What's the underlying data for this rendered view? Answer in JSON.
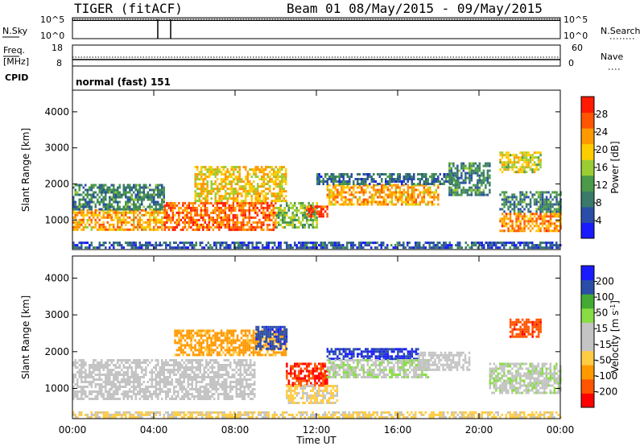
{
  "header": {
    "station": "TIGER (fitACF)",
    "beam_title": "Beam 01 08/May/2015 - 09/May/2015"
  },
  "top_panels": {
    "nsky_label": "N.Sky",
    "nsky_ticks": [
      "10^5",
      "10^0"
    ],
    "nsearch_label": "N.Search",
    "nsearch_ticks": [
      "10^5",
      "10^0"
    ],
    "freq_label_1": "Freq.",
    "freq_label_2": "[MHz]",
    "freq_ticks": [
      "18",
      "8"
    ],
    "nave_label": "Nave",
    "nave_ticks": [
      "60",
      "0"
    ],
    "cpid_label": "CPID",
    "cpid_value": "normal (fast) 151"
  },
  "colors": {
    "power_scale": [
      "#1a1aff",
      "#2a4ea8",
      "#3a7a6a",
      "#4a9a4a",
      "#9acc33",
      "#ffcc00",
      "#ff9900",
      "#ff5500",
      "#ff1a00"
    ],
    "velocity_scale": [
      "#ff0000",
      "#ff5500",
      "#ff9900",
      "#ffcc44",
      "#c4c4c4",
      "#c4c4c4",
      "#88dd44",
      "#44aa33",
      "#2a4ea8",
      "#1a1aff"
    ]
  },
  "chart_data": [
    {
      "type": "heatmap",
      "panel": "power",
      "xlabel": "",
      "ylabel": "Slant Range [km]",
      "x_ticks": [
        "00:00",
        "04:00",
        "08:00",
        "12:00",
        "16:00",
        "20:00",
        "00:00"
      ],
      "xlim_hours": [
        0,
        24
      ],
      "ylim_km": [
        180,
        4600
      ],
      "y_ticks": [
        1000,
        2000,
        3000,
        4000
      ],
      "colorbar_label": "Power [dB]",
      "colorbar_ticks": [
        4,
        8,
        12,
        16,
        20,
        24,
        28
      ],
      "colorbar_range": [
        0,
        32
      ],
      "bands": [
        {
          "t0": 0.0,
          "t1": 4.5,
          "r0": 700,
          "r1": 1300,
          "value": 22
        },
        {
          "t0": 0.0,
          "t1": 4.5,
          "r0": 1300,
          "r1": 2000,
          "value": 10
        },
        {
          "t0": 4.5,
          "t1": 10.0,
          "r0": 700,
          "r1": 1500,
          "value": 26
        },
        {
          "t0": 6.0,
          "t1": 10.5,
          "r0": 1500,
          "r1": 2500,
          "value": 20
        },
        {
          "t0": 10.0,
          "t1": 12.0,
          "r0": 800,
          "r1": 1500,
          "value": 14
        },
        {
          "t0": 11.5,
          "t1": 12.5,
          "r0": 1100,
          "r1": 1400,
          "value": 28
        },
        {
          "t0": 12.5,
          "t1": 18.0,
          "r0": 1400,
          "r1": 2000,
          "value": 22
        },
        {
          "t0": 12.0,
          "t1": 19.0,
          "r0": 2000,
          "r1": 2300,
          "value": 8
        },
        {
          "t0": 18.5,
          "t1": 20.5,
          "r0": 1700,
          "r1": 2600,
          "value": 10
        },
        {
          "t0": 21.0,
          "t1": 24.0,
          "r0": 700,
          "r1": 1200,
          "value": 24
        },
        {
          "t0": 21.0,
          "t1": 24.0,
          "r0": 1200,
          "r1": 1800,
          "value": 10
        },
        {
          "t0": 21.0,
          "t1": 23.0,
          "r0": 2300,
          "r1": 2900,
          "value": 18
        },
        {
          "t0": 0.0,
          "t1": 24.0,
          "r0": 200,
          "r1": 400,
          "value": 6
        }
      ]
    },
    {
      "type": "heatmap",
      "panel": "velocity",
      "xlabel": "Time UT",
      "ylabel": "Slant Range [km]",
      "x_ticks": [
        "00:00",
        "04:00",
        "08:00",
        "12:00",
        "16:00",
        "20:00",
        "00:00"
      ],
      "xlim_hours": [
        0,
        24
      ],
      "ylim_km": [
        180,
        4600
      ],
      "y_ticks": [
        1000,
        2000,
        3000,
        4000
      ],
      "colorbar_label": "Velocity [m s^-1]",
      "colorbar_ticks": [
        "200",
        "100",
        "50",
        "15",
        "-15",
        "-50",
        "-100",
        "-200"
      ],
      "colorbar_range": [
        -250,
        250
      ],
      "bands": [
        {
          "t0": 0.0,
          "t1": 9.0,
          "r0": 700,
          "r1": 1800,
          "value": 0
        },
        {
          "t0": 5.0,
          "t1": 10.5,
          "r0": 1900,
          "r1": 2600,
          "value": -120
        },
        {
          "t0": 9.0,
          "t1": 10.5,
          "r0": 2100,
          "r1": 2700,
          "value": 180
        },
        {
          "t0": 10.5,
          "t1": 12.5,
          "r0": 1100,
          "r1": 1700,
          "value": -200
        },
        {
          "t0": 12.5,
          "t1": 17.0,
          "r0": 1800,
          "r1": 2100,
          "value": 200
        },
        {
          "t0": 12.5,
          "t1": 17.5,
          "r0": 1300,
          "r1": 1800,
          "value": 40
        },
        {
          "t0": 17.0,
          "t1": 19.5,
          "r0": 1500,
          "r1": 2000,
          "value": 5
        },
        {
          "t0": 10.5,
          "t1": 13.0,
          "r0": 600,
          "r1": 1100,
          "value": -60
        },
        {
          "t0": 20.5,
          "t1": 24.0,
          "r0": 900,
          "r1": 1700,
          "value": 35
        },
        {
          "t0": 21.5,
          "t1": 23.0,
          "r0": 2400,
          "r1": 2900,
          "value": -180
        },
        {
          "t0": 0.0,
          "t1": 24.0,
          "r0": 200,
          "r1": 380,
          "value": -60
        }
      ]
    }
  ]
}
